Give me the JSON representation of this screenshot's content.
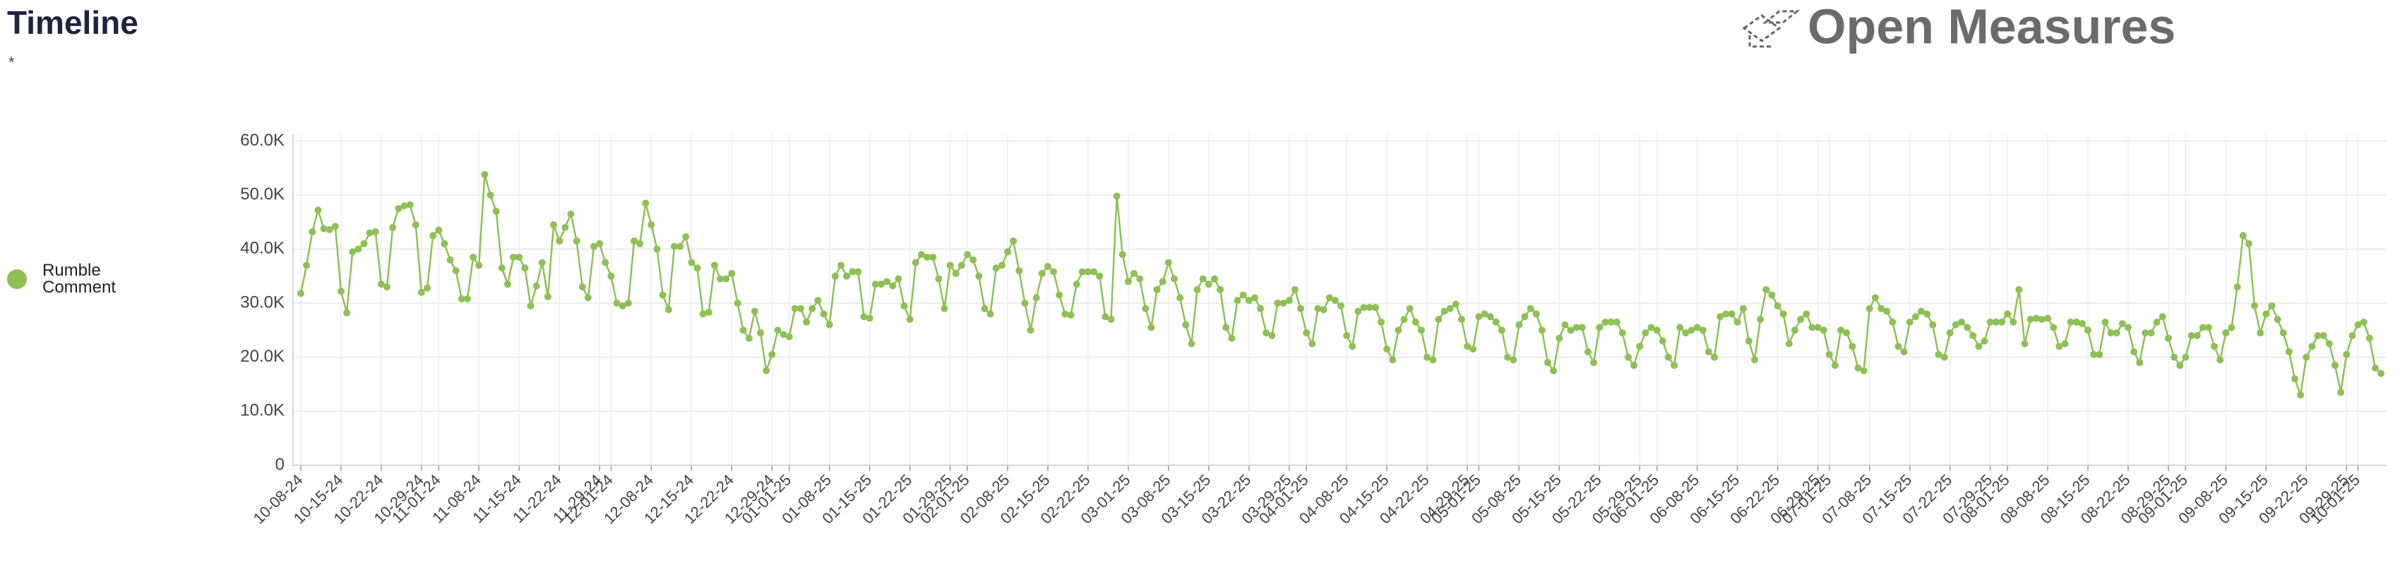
{
  "chart_data": {
    "type": "line",
    "title": "Timeline",
    "subtitle": "*",
    "brand": "Open Measures",
    "x": [
      "10-08-24",
      "10-09-24",
      "10-10-24",
      "10-11-24",
      "10-12-24",
      "10-13-24",
      "10-14-24",
      "10-15-24",
      "10-16-24",
      "10-17-24",
      "10-18-24",
      "10-19-24",
      "10-20-24",
      "10-21-24",
      "10-22-24",
      "10-23-24",
      "10-24-24",
      "10-25-24",
      "10-26-24",
      "10-27-24",
      "10-28-24",
      "10-29-24",
      "10-30-24",
      "10-31-24",
      "11-01-24",
      "11-02-24",
      "11-03-24",
      "11-04-24",
      "11-05-24",
      "11-06-24",
      "11-07-24",
      "11-08-24",
      "11-09-24",
      "11-10-24",
      "11-11-24",
      "11-12-24",
      "11-13-24",
      "11-14-24",
      "11-15-24",
      "11-16-24",
      "11-17-24",
      "11-18-24",
      "11-19-24",
      "11-20-24",
      "11-21-24",
      "11-22-24",
      "11-23-24",
      "11-24-24",
      "11-25-24",
      "11-26-24",
      "11-27-24",
      "11-28-24",
      "11-29-24",
      "11-30-24",
      "12-01-24",
      "12-02-24",
      "12-03-24",
      "12-04-24",
      "12-05-24",
      "12-06-24",
      "12-07-24",
      "12-08-24",
      "12-09-24",
      "12-10-24",
      "12-11-24",
      "12-12-24",
      "12-13-24",
      "12-14-24",
      "12-15-24",
      "12-16-24",
      "12-17-24",
      "12-18-24",
      "12-19-24",
      "12-20-24",
      "12-21-24",
      "12-22-24",
      "12-23-24",
      "12-24-24",
      "12-25-24",
      "12-26-24",
      "12-27-24",
      "12-28-24",
      "12-29-24",
      "12-30-24",
      "12-31-24",
      "01-01-25",
      "01-02-25",
      "01-03-25",
      "01-04-25",
      "01-05-25",
      "01-06-25",
      "01-07-25",
      "01-08-25",
      "01-09-25",
      "01-10-25",
      "01-11-25",
      "01-12-25",
      "01-13-25",
      "01-14-25",
      "01-15-25",
      "01-16-25",
      "01-17-25",
      "01-18-25",
      "01-19-25",
      "01-20-25",
      "01-21-25",
      "01-22-25",
      "01-23-25",
      "01-24-25",
      "01-25-25",
      "01-26-25",
      "01-27-25",
      "01-28-25",
      "01-29-25",
      "01-30-25",
      "01-31-25",
      "02-01-25",
      "02-02-25",
      "02-03-25",
      "02-04-25",
      "02-05-25",
      "02-06-25",
      "02-07-25",
      "02-08-25",
      "02-09-25",
      "02-10-25",
      "02-11-25",
      "02-12-25",
      "02-13-25",
      "02-14-25",
      "02-15-25",
      "02-16-25",
      "02-17-25",
      "02-18-25",
      "02-19-25",
      "02-20-25",
      "02-21-25",
      "02-22-25",
      "02-23-25",
      "02-24-25",
      "02-25-25",
      "02-26-25",
      "02-27-25",
      "02-28-25",
      "03-01-25",
      "03-02-25",
      "03-03-25",
      "03-04-25",
      "03-05-25",
      "03-06-25",
      "03-07-25",
      "03-08-25",
      "03-09-25",
      "03-10-25",
      "03-11-25",
      "03-12-25",
      "03-13-25",
      "03-14-25",
      "03-15-25",
      "03-16-25",
      "03-17-25",
      "03-18-25",
      "03-19-25",
      "03-20-25",
      "03-21-25",
      "03-22-25",
      "03-23-25",
      "03-24-25",
      "03-25-25",
      "03-26-25",
      "03-27-25",
      "03-28-25",
      "03-29-25",
      "03-30-25",
      "03-31-25",
      "04-01-25",
      "04-02-25",
      "04-03-25",
      "04-04-25",
      "04-05-25",
      "04-06-25",
      "04-07-25",
      "04-08-25",
      "04-09-25",
      "04-10-25",
      "04-11-25",
      "04-12-25",
      "04-13-25",
      "04-14-25",
      "04-15-25",
      "04-16-25",
      "04-17-25",
      "04-18-25",
      "04-19-25",
      "04-20-25",
      "04-21-25",
      "04-22-25",
      "04-23-25",
      "04-24-25",
      "04-25-25",
      "04-26-25",
      "04-27-25",
      "04-28-25",
      "04-29-25",
      "04-30-25",
      "05-01-25",
      "05-02-25",
      "05-03-25",
      "05-04-25",
      "05-05-25",
      "05-06-25",
      "05-07-25",
      "05-08-25",
      "05-09-25",
      "05-10-25",
      "05-11-25",
      "05-12-25",
      "05-13-25",
      "05-14-25",
      "05-15-25",
      "05-16-25",
      "05-17-25",
      "05-18-25",
      "05-19-25",
      "05-20-25",
      "05-21-25",
      "05-22-25",
      "05-23-25",
      "05-24-25",
      "05-25-25",
      "05-26-25",
      "05-27-25",
      "05-28-25",
      "05-29-25",
      "05-30-25",
      "05-31-25",
      "06-01-25",
      "06-02-25",
      "06-03-25",
      "06-04-25",
      "06-05-25",
      "06-06-25",
      "06-07-25",
      "06-08-25",
      "06-09-25",
      "06-10-25",
      "06-11-25",
      "06-12-25",
      "06-13-25",
      "06-14-25",
      "06-15-25",
      "06-16-25",
      "06-17-25",
      "06-18-25",
      "06-19-25",
      "06-20-25",
      "06-21-25",
      "06-22-25",
      "06-23-25",
      "06-24-25",
      "06-25-25",
      "06-26-25",
      "06-27-25",
      "06-28-25",
      "06-29-25",
      "06-30-25",
      "07-01-25",
      "07-02-25",
      "07-03-25",
      "07-04-25",
      "07-05-25",
      "07-06-25",
      "07-07-25",
      "07-08-25",
      "07-09-25",
      "07-10-25",
      "07-11-25",
      "07-12-25",
      "07-13-25",
      "07-14-25",
      "07-15-25",
      "07-16-25",
      "07-17-25",
      "07-18-25",
      "07-19-25",
      "07-20-25",
      "07-21-25",
      "07-22-25",
      "07-23-25",
      "07-24-25",
      "07-25-25",
      "07-26-25",
      "07-27-25",
      "07-28-25",
      "07-29-25",
      "07-30-25",
      "07-31-25",
      "08-01-25",
      "08-02-25",
      "08-03-25",
      "08-04-25",
      "08-05-25",
      "08-06-25",
      "08-07-25",
      "08-08-25",
      "08-09-25",
      "08-10-25",
      "08-11-25",
      "08-12-25",
      "08-13-25",
      "08-14-25",
      "08-15-25",
      "08-16-25",
      "08-17-25",
      "08-18-25",
      "08-19-25",
      "08-20-25",
      "08-21-25",
      "08-22-25",
      "08-23-25",
      "08-24-25",
      "08-25-25",
      "08-26-25",
      "08-27-25",
      "08-28-25",
      "08-29-25",
      "08-30-25",
      "08-31-25",
      "09-01-25",
      "09-02-25",
      "09-03-25",
      "09-04-25",
      "09-05-25",
      "09-06-25",
      "09-07-25",
      "09-08-25",
      "09-09-25",
      "09-10-25",
      "09-11-25",
      "09-12-25",
      "09-13-25",
      "09-14-25",
      "09-15-25",
      "09-16-25",
      "09-17-25",
      "09-18-25",
      "09-19-25",
      "09-20-25",
      "09-21-25",
      "09-22-25",
      "09-23-25",
      "09-24-25",
      "09-25-25",
      "09-26-25",
      "09-27-25",
      "09-28-25",
      "09-29-25",
      "09-30-25",
      "10-01-25",
      "10-02-25",
      "10-03-25",
      "10-04-25",
      "10-05-25"
    ],
    "series": [
      {
        "name": "Rumble Comment",
        "color": "#8dc155",
        "values": [
          31800,
          37000,
          43200,
          47200,
          43800,
          43600,
          44200,
          32200,
          28200,
          39500,
          40000,
          41000,
          43000,
          43200,
          33500,
          33000,
          44000,
          47500,
          48000,
          48200,
          44500,
          32000,
          32800,
          42500,
          43500,
          41000,
          38000,
          36000,
          30800,
          30800,
          38500,
          37000,
          53800,
          50000,
          47000,
          36500,
          33500,
          38500,
          38500,
          36500,
          29500,
          33200,
          37500,
          31200,
          44500,
          41500,
          44000,
          46500,
          41500,
          33000,
          31000,
          40500,
          41000,
          37500,
          35000,
          30000,
          29500,
          30000,
          41500,
          41000,
          48500,
          44500,
          40000,
          31500,
          28800,
          40500,
          40500,
          42300,
          37500,
          36500,
          28000,
          28300,
          37000,
          34500,
          34500,
          35500,
          30000,
          25000,
          23500,
          28500,
          24500,
          17500,
          20500,
          25000,
          24200,
          23800,
          29000,
          29000,
          26500,
          29000,
          30500,
          28000,
          26000,
          35000,
          37000,
          35000,
          35800,
          35800,
          27500,
          27200,
          33500,
          33500,
          34000,
          33200,
          34500,
          29500,
          27000,
          37500,
          39000,
          38500,
          38500,
          34500,
          29000,
          37000,
          35500,
          37000,
          39000,
          38000,
          35000,
          29000,
          28000,
          36500,
          37000,
          39500,
          41500,
          36000,
          30000,
          25000,
          31000,
          35500,
          36800,
          35800,
          31500,
          28000,
          27800,
          33500,
          35800,
          35800,
          35800,
          35000,
          27500,
          27000,
          49800,
          39000,
          34000,
          35500,
          34500,
          29000,
          25500,
          32500,
          34000,
          37500,
          34500,
          31000,
          26000,
          22500,
          32500,
          34500,
          33500,
          34500,
          32500,
          25500,
          23500,
          30500,
          31500,
          30500,
          31000,
          29000,
          24500,
          24000,
          30000,
          30000,
          30500,
          32500,
          29000,
          24500,
          22500,
          29000,
          28800,
          31000,
          30500,
          29500,
          24000,
          22000,
          28500,
          29200,
          29200,
          29200,
          26500,
          21500,
          19500,
          25000,
          27000,
          29000,
          26500,
          25000,
          20000,
          19500,
          27000,
          28500,
          29000,
          29800,
          27000,
          22000,
          21500,
          27500,
          28000,
          27500,
          26500,
          25000,
          20000,
          19500,
          26000,
          27500,
          29000,
          28000,
          25000,
          19000,
          17500,
          23500,
          26000,
          25000,
          25500,
          25500,
          21000,
          19000,
          25500,
          26500,
          26500,
          26500,
          24500,
          20000,
          18500,
          22000,
          24500,
          25500,
          25000,
          23000,
          20000,
          18500,
          25500,
          24500,
          25000,
          25500,
          25000,
          21000,
          20000,
          27500,
          28000,
          28000,
          26500,
          29000,
          23000,
          19500,
          27000,
          32500,
          31500,
          29500,
          28000,
          22500,
          25000,
          27000,
          28000,
          25500,
          25500,
          25000,
          20500,
          18500,
          25000,
          24500,
          22000,
          18000,
          17500,
          29000,
          31000,
          29000,
          28500,
          26500,
          22000,
          21000,
          26500,
          27500,
          28500,
          28000,
          26000,
          20500,
          20000,
          24500,
          26000,
          26500,
          25500,
          24000,
          22000,
          23000,
          26500,
          26500,
          26500,
          28000,
          26500,
          32500,
          22500,
          27000,
          27200,
          27000,
          27200,
          25500,
          22000,
          22500,
          26500,
          26500,
          26200,
          25000,
          20500,
          20500,
          26500,
          24500,
          24500,
          26200,
          25500,
          21000,
          19000,
          24500,
          24500,
          26500,
          27500,
          23500,
          20000,
          18500,
          20000,
          24000,
          24000,
          25500,
          25500,
          22000,
          19500,
          24500,
          25500,
          33000,
          42500,
          41000,
          29500,
          24500,
          28000,
          29500,
          27000,
          24500,
          21000,
          16000,
          13000,
          20000,
          22000,
          24000,
          24000,
          22500,
          18500,
          13500,
          20500,
          24000,
          26000,
          26500,
          23500,
          18000,
          17000
        ]
      }
    ],
    "xlim": [
      "10-08-24",
      "10-05-25"
    ],
    "xticks": [
      "10-08-24",
      "10-15-24",
      "10-22-24",
      "10-29-24",
      "11-01-24",
      "11-08-24",
      "11-15-24",
      "11-22-24",
      "11-29-24",
      "12-01-24",
      "12-08-24",
      "12-15-24",
      "12-22-24",
      "12-29-24",
      "01-01-25",
      "01-08-25",
      "01-15-25",
      "01-22-25",
      "01-29-25",
      "02-01-25",
      "02-08-25",
      "02-15-25",
      "02-22-25",
      "03-01-25",
      "03-08-25",
      "03-15-25",
      "03-22-25",
      "03-29-25",
      "04-01-25",
      "04-08-25",
      "04-15-25",
      "04-22-25",
      "04-29-25",
      "05-01-25",
      "05-08-25",
      "05-15-25",
      "05-22-25",
      "05-29-25",
      "06-01-25",
      "06-08-25",
      "06-15-25",
      "06-22-25",
      "06-29-25",
      "07-01-25",
      "07-08-25",
      "07-15-25",
      "07-22-25",
      "07-29-25",
      "08-01-25",
      "08-08-25",
      "08-15-25",
      "08-22-25",
      "08-29-25",
      "09-01-25",
      "09-08-25",
      "09-15-25",
      "09-22-25",
      "09-29-25",
      "10-01-25"
    ],
    "ylim": [
      0,
      60000
    ],
    "yticks": [
      0,
      {
        "value": 10000,
        "label": "10.0K"
      },
      {
        "value": 20000,
        "label": "20.0K"
      },
      {
        "value": 30000,
        "label": "30.0K"
      },
      {
        "value": 40000,
        "label": "40.0K"
      },
      {
        "value": 50000,
        "label": "50.0K"
      },
      {
        "value": 60000,
        "label": "60.0K"
      }
    ],
    "grid": true,
    "legend": "left"
  }
}
